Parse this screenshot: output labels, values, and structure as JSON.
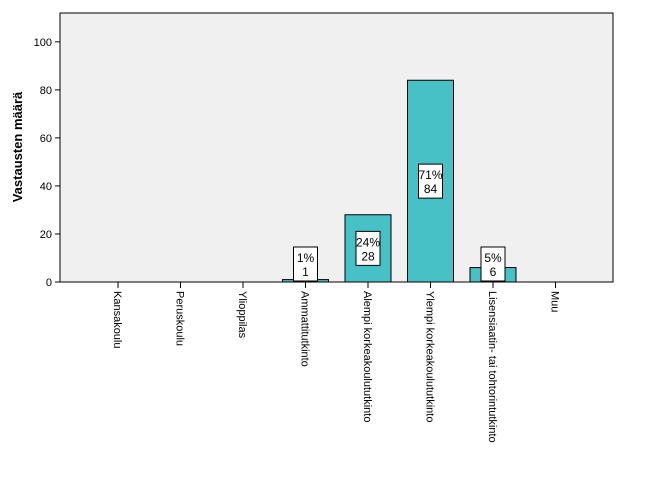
{
  "chart_data": {
    "type": "bar",
    "title": "",
    "xlabel": "",
    "ylabel": "Vastausten määrä",
    "ylim": [
      0,
      112
    ],
    "yticks": [
      0,
      20,
      40,
      60,
      80,
      100
    ],
    "grid": false,
    "legend": "none",
    "categories": [
      "Kansakoulu",
      "Peruskoulu",
      "Ylioppilas",
      "Ammattitutkinto",
      "Alempi korkeakoulututkinto",
      "Ylempi korkeakoulututkinto",
      "Lisensiaatin- tai tohtorintutkinto",
      "Muu"
    ],
    "values": [
      0,
      0,
      0,
      1,
      28,
      84,
      6,
      0
    ],
    "data_labels": [
      {
        "category_index": 3,
        "percent": "1%",
        "count": "1"
      },
      {
        "category_index": 4,
        "percent": "24%",
        "count": "28"
      },
      {
        "category_index": 5,
        "percent": "71%",
        "count": "84"
      },
      {
        "category_index": 6,
        "percent": "5%",
        "count": "6"
      }
    ],
    "colors": {
      "bar": "#48c1c6",
      "plot_background": "#f0f0f0",
      "axis": "#000000"
    }
  }
}
